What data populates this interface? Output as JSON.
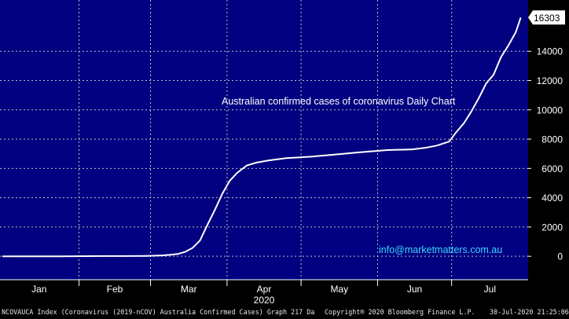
{
  "chart_data": {
    "type": "line",
    "title": "Australian confirmed cases of coronavirus Daily Chart",
    "xlabel": "2020",
    "ylabel": "",
    "month_ticks": [
      "Jan",
      "Feb",
      "Mar",
      "Apr",
      "May",
      "Jun",
      "Jul"
    ],
    "y_ticks": [
      0,
      2000,
      4000,
      6000,
      8000,
      10000,
      12000,
      14000
    ],
    "ylim": [
      -1600,
      17500
    ],
    "xlim": [
      "2019-12-31",
      "2020-08-01"
    ],
    "last_value_label": "16303",
    "grid": true,
    "line_color": "#ffffff",
    "background_color": "#000080",
    "series": [
      {
        "x": [
          "2020-01-01",
          "2020-01-25",
          "2020-02-10",
          "2020-02-20",
          "2020-02-28",
          "2020-03-03",
          "2020-03-06",
          "2020-03-09",
          "2020-03-12",
          "2020-03-15",
          "2020-03-18",
          "2020-03-21",
          "2020-03-24",
          "2020-03-27",
          "2020-03-30",
          "2020-04-02",
          "2020-04-05",
          "2020-04-09",
          "2020-04-13",
          "2020-04-18",
          "2020-04-25",
          "2020-05-05",
          "2020-05-15",
          "2020-05-25",
          "2020-06-05",
          "2020-06-15",
          "2020-06-20",
          "2020-06-25",
          "2020-06-30",
          "2020-07-03",
          "2020-07-06",
          "2020-07-09",
          "2020-07-12",
          "2020-07-15",
          "2020-07-18",
          "2020-07-21",
          "2020-07-24",
          "2020-07-27",
          "2020-07-29"
        ],
        "values": [
          0,
          0,
          15,
          15,
          25,
          41,
          63,
          100,
          156,
          297,
          565,
          1072,
          2136,
          3143,
          4245,
          5133,
          5687,
          6200,
          6400,
          6550,
          6700,
          6800,
          6950,
          7100,
          7250,
          7300,
          7400,
          7560,
          7834,
          8500,
          9100,
          9900,
          10800,
          11800,
          12400,
          13600,
          14400,
          15300,
          16303
        ]
      }
    ]
  },
  "footer": {
    "ticker": "NCOVAUCA Index (Coronavirus (2019-nCOV) Australia Confirmed Cases) Graph 217 Da",
    "copyright": "Copyright® 2020 Bloomberg Finance L.P.",
    "timestamp": "30-Jul-2020 21:25:06"
  },
  "annotation": {
    "email": "info@marketmatters.com.au",
    "email_color": "#3ad7ff"
  }
}
